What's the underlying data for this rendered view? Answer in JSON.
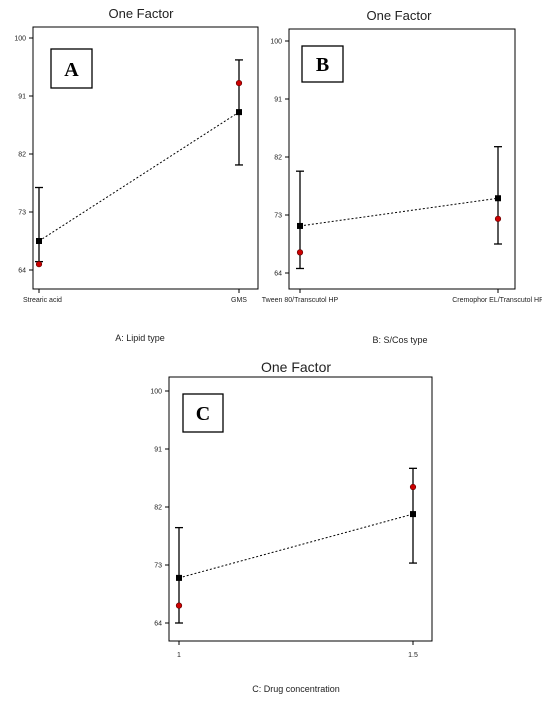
{
  "chart_data": [
    {
      "type": "line",
      "title": "One Factor",
      "badge": "A",
      "xlabel": "A: Lipid type",
      "categories": [
        "Strearic acid",
        "GMS"
      ],
      "y_ticks": [
        64,
        73,
        82,
        91,
        100
      ],
      "ylim": [
        64,
        100
      ],
      "predicted": [
        68.5,
        88.5
      ],
      "interval_low": [
        65.3,
        80.3
      ],
      "interval_high": [
        76.8,
        96.6
      ],
      "observed": [
        64.9,
        93.0
      ],
      "grid": false
    },
    {
      "type": "line",
      "title": "One Factor",
      "badge": "B",
      "xlabel": "B: S/Cos type",
      "categories": [
        "Tween 80/Transcutol HP",
        "Cremophor EL/Transcutol HP"
      ],
      "y_ticks": [
        64,
        73,
        82,
        91,
        100
      ],
      "ylim": [
        64,
        100
      ],
      "predicted": [
        71.3,
        75.6
      ],
      "interval_low": [
        64.7,
        68.5
      ],
      "interval_high": [
        79.8,
        83.6
      ],
      "observed": [
        67.2,
        72.4
      ],
      "grid": false
    },
    {
      "type": "line",
      "title": "One Factor",
      "badge": "C",
      "xlabel": "C: Drug concentration",
      "categories": [
        "1",
        "1.5"
      ],
      "y_ticks": [
        64,
        73,
        82,
        91,
        100
      ],
      "ylim": [
        64,
        100
      ],
      "predicted": [
        71.0,
        80.9
      ],
      "interval_low": [
        64.0,
        73.3
      ],
      "interval_high": [
        78.8,
        88.0
      ],
      "observed": [
        66.7,
        85.1
      ],
      "grid": false
    }
  ],
  "colors": {
    "predicted_marker": "#000000",
    "observed_marker": "#cc0000",
    "interval": "#000000",
    "line": "#000000"
  }
}
